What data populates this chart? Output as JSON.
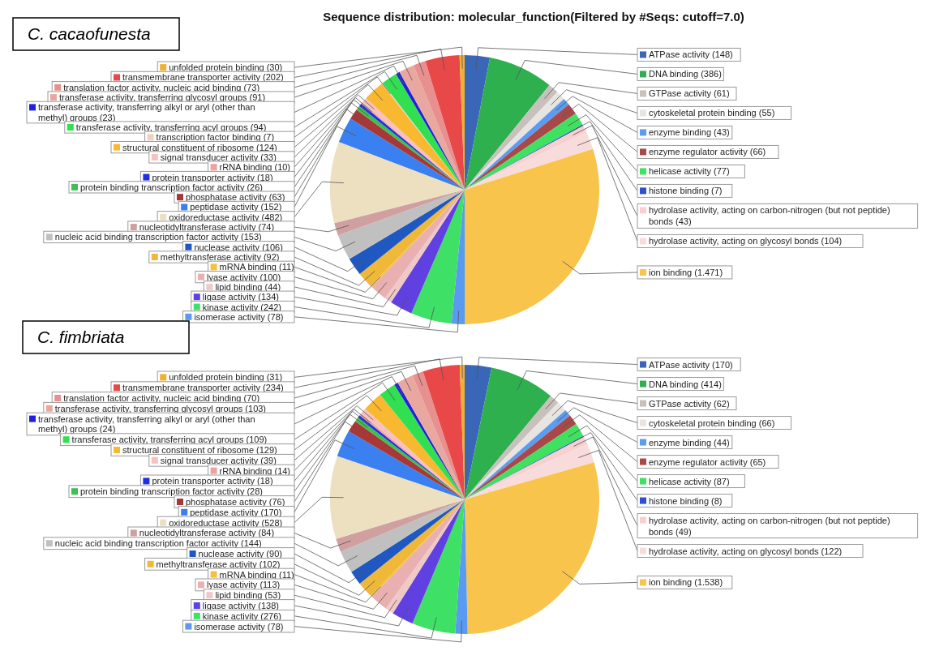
{
  "chart_data": [
    {
      "type": "pie",
      "title": "Sequence distribution: molecular_function(Filtered by #Seqs: cutoff=7.0)",
      "subtitle": "C. cacaofunesta",
      "legend": "left",
      "categories": [
        "ATPase activity (148)",
        "DNA binding (386)",
        "GTPase activity (61)",
        "cytoskeletal protein binding (55)",
        "enzyme binding (43)",
        "enzyme regulator activity (66)",
        "helicase activity (77)",
        "histone binding (7)",
        "hydrolase activity, acting on carbon-nitrogen (but not peptide) bonds (43)",
        "hydrolase activity, acting on glycosyl bonds (104)",
        "ion binding (1.471)",
        "isomerase activity (78)",
        "kinase activity (242)",
        "ligase activity (134)",
        "lipid binding (44)",
        "lyase activity (100)",
        "mRNA binding (11)",
        "methyltransferase activity (92)",
        "nuclease activity (106)",
        "nucleic acid binding transcription factor activity (153)",
        "nucleotidyltransferase activity (74)",
        "oxidoreductase activity (482)",
        "peptidase activity (152)",
        "phosphatase activity (63)",
        "protein binding transcription factor activity (26)",
        "protein transporter activity (18)",
        "rRNA binding (10)",
        "signal transducer activity (33)",
        "structural constituent of ribosome (124)",
        "transcription factor binding (7)",
        "transferase activity, transferring acyl groups (94)",
        "transferase activity, transferring alkyl or aryl (other than methyl) groups (23)",
        "transferase activity, transferring glycosyl groups (91)",
        "translation factor activity, nucleic acid binding (73)",
        "transmembrane transporter activity (202)",
        "unfolded protein binding (30)"
      ],
      "values": [
        148,
        386,
        61,
        55,
        43,
        66,
        77,
        7,
        43,
        104,
        1471,
        78,
        242,
        134,
        44,
        100,
        11,
        92,
        106,
        153,
        74,
        482,
        152,
        63,
        26,
        18,
        10,
        33,
        124,
        7,
        94,
        23,
        91,
        73,
        202,
        30
      ],
      "colors": [
        "#3a66b8",
        "#2fb04f",
        "#c8c0bc",
        "#e8e4e0",
        "#5b9cf0",
        "#a84848",
        "#40e060",
        "#3050d0",
        "#f8d0d0",
        "#f8dcdc",
        "#f8c44c",
        "#5a9af0",
        "#3ee066",
        "#6040e0",
        "#f0c8c8",
        "#e8b0b0",
        "#f8c040",
        "#f0b838",
        "#1e58c0",
        "#c0c0c0",
        "#d0a0a0",
        "#ede0c0",
        "#3a80f0",
        "#a83838",
        "#3ec050",
        "#2030e0",
        "#f0a0a0",
        "#f8c0c0",
        "#f8b830",
        "#f0d0c0",
        "#30e050",
        "#2020e0",
        "#e8a8a0",
        "#e89090",
        "#e84848",
        "#f0b030"
      ]
    },
    {
      "type": "pie",
      "subtitle": "C. fimbriata",
      "legend": "left",
      "categories": [
        "ATPase activity (170)",
        "DNA binding (414)",
        "GTPase activity (62)",
        "cytoskeletal protein binding (66)",
        "enzyme binding (44)",
        "enzyme regulator activity (65)",
        "helicase activity (87)",
        "histone binding (8)",
        "hydrolase activity, acting on carbon-nitrogen (but not peptide) bonds (49)",
        "hydrolase activity, acting on glycosyl bonds (122)",
        "ion binding (1.538)",
        "isomerase activity (78)",
        "kinase activity (276)",
        "ligase activity (138)",
        "lipid binding (53)",
        "lyase activity (113)",
        "mRNA binding (11)",
        "methyltransferase activity (102)",
        "nuclease activity (90)",
        "nucleic acid binding transcription factor activity (144)",
        "nucleotidyltransferase activity (84)",
        "oxidoreductase activity (528)",
        "peptidase activity (170)",
        "phosphatase activity (76)",
        "protein binding transcription factor activity (28)",
        "protein transporter activity (18)",
        "rRNA binding (14)",
        "signal transducer activity (39)",
        "structural constituent of ribosome (129)",
        "transferase activity, transferring acyl groups (109)",
        "transferase activity, transferring alkyl or aryl (other than methyl) groups (24)",
        "transferase activity, transferring glycosyl groups (103)",
        "translation factor activity, nucleic acid binding (70)",
        "transmembrane transporter activity (234)",
        "unfolded protein binding (31)"
      ],
      "values": [
        170,
        414,
        62,
        66,
        44,
        65,
        87,
        8,
        49,
        122,
        1538,
        78,
        276,
        138,
        53,
        113,
        11,
        102,
        90,
        144,
        84,
        528,
        170,
        76,
        28,
        18,
        14,
        39,
        129,
        109,
        24,
        103,
        70,
        234,
        31
      ],
      "colors": [
        "#3a66b8",
        "#2fb04f",
        "#c8c0bc",
        "#e8e4e0",
        "#5b9cf0",
        "#a84848",
        "#40e060",
        "#3050d0",
        "#f8d0d0",
        "#f8dcdc",
        "#f8c44c",
        "#5a9af0",
        "#3ee066",
        "#6040e0",
        "#f0c8c8",
        "#e8b0b0",
        "#f8c040",
        "#f0b838",
        "#1e58c0",
        "#c0c0c0",
        "#d0a0a0",
        "#ede0c0",
        "#3a80f0",
        "#a83838",
        "#3ec050",
        "#2030e0",
        "#f0a0a0",
        "#f8c0c0",
        "#f8b830",
        "#30e050",
        "#2020e0",
        "#e8a8a0",
        "#e89090",
        "#e84848",
        "#f0b030"
      ]
    }
  ]
}
